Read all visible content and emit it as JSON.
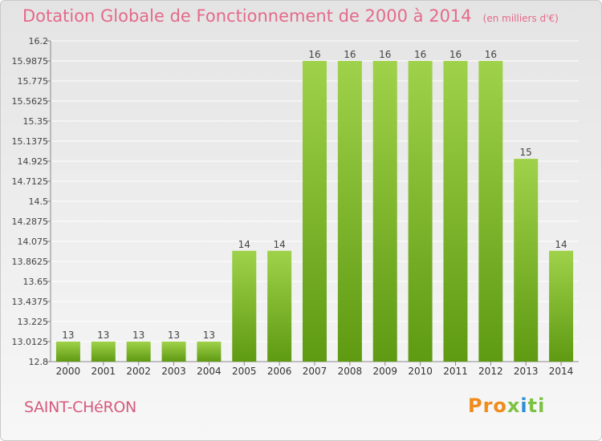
{
  "title": "Dotation Globale de Fonctionnement de 2000 à 2014",
  "unit": "(en milliers d'€)",
  "commune": "SAINT-CHéRON",
  "logo": {
    "text": "Proxiti",
    "colors": [
      "#f08c1a",
      "#2a8fd6",
      "#7cc242"
    ]
  },
  "colors": {
    "bar_light": "#9fd24a",
    "bar_dark": "#5e9a12",
    "grid": "#ffffff",
    "axis": "#8a8a8a",
    "title": "#e46a8a"
  },
  "chart_data": {
    "type": "bar",
    "title": "Dotation Globale de Fonctionnement de 2000 à 2014",
    "categories": [
      "2000",
      "2001",
      "2002",
      "2003",
      "2004",
      "2005",
      "2006",
      "2007",
      "2008",
      "2009",
      "2010",
      "2011",
      "2012",
      "2013",
      "2014"
    ],
    "values": [
      13.0125,
      13.0125,
      13.0125,
      13.0125,
      13.0125,
      13.975,
      13.975,
      15.9875,
      15.9875,
      15.9875,
      15.9875,
      15.9875,
      15.9875,
      14.95,
      13.975
    ],
    "data_labels": [
      "13",
      "13",
      "13",
      "13",
      "13",
      "14",
      "14",
      "16",
      "16",
      "16",
      "16",
      "16",
      "16",
      "15",
      "14"
    ],
    "ylim": [
      12.8,
      16.2
    ],
    "yticks": [
      "12.8",
      "13.0125",
      "13.225",
      "13.4375",
      "13.65",
      "13.8625",
      "14.075",
      "14.2875",
      "14.5",
      "14.7125",
      "14.925",
      "15.1375",
      "15.35",
      "15.5625",
      "15.775",
      "15.9875",
      "16.2"
    ],
    "xlabel": "",
    "ylabel": "",
    "grid": true,
    "legend": false
  }
}
